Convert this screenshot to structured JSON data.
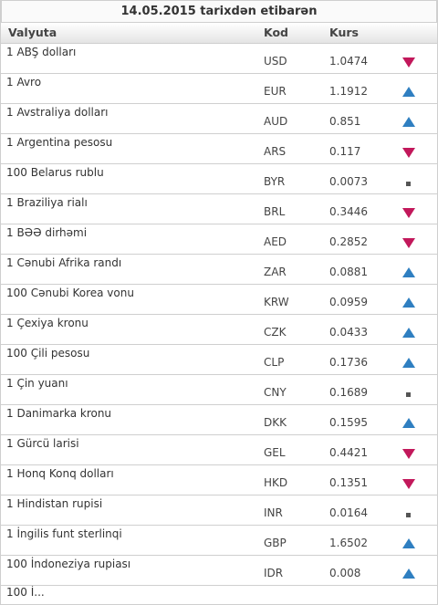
{
  "title": "14.05.2015 tarixdən etibarən",
  "headers": {
    "currency": "Valyuta",
    "code": "Kod",
    "rate": "Kurs"
  },
  "colors": {
    "down": "#c2185b",
    "up": "#2f7fc1",
    "flat": "#555555"
  },
  "rows": [
    {
      "name": "1 ABŞ dolları",
      "code": "USD",
      "rate": "1.0474",
      "trend": "down"
    },
    {
      "name": "1 Avro",
      "code": "EUR",
      "rate": "1.1912",
      "trend": "up"
    },
    {
      "name": "1 Avstraliya dolları",
      "code": "AUD",
      "rate": "0.851",
      "trend": "up"
    },
    {
      "name": "1 Argentina pesosu",
      "code": "ARS",
      "rate": "0.117",
      "trend": "down"
    },
    {
      "name": "100 Belarus rublu",
      "code": "BYR",
      "rate": "0.0073",
      "trend": "flat"
    },
    {
      "name": "1 Braziliya rialı",
      "code": "BRL",
      "rate": "0.3446",
      "trend": "down"
    },
    {
      "name": "1 BƏƏ dirhəmi",
      "code": "AED",
      "rate": "0.2852",
      "trend": "down"
    },
    {
      "name": "1 Cənubi Afrika randı",
      "code": "ZAR",
      "rate": "0.0881",
      "trend": "up"
    },
    {
      "name": "100 Cənubi Korea vonu",
      "code": "KRW",
      "rate": "0.0959",
      "trend": "up"
    },
    {
      "name": "1 Çexiya kronu",
      "code": "CZK",
      "rate": "0.0433",
      "trend": "up"
    },
    {
      "name": "100 Çili pesosu",
      "code": "CLP",
      "rate": "0.1736",
      "trend": "up"
    },
    {
      "name": "1 Çin yuanı",
      "code": "CNY",
      "rate": "0.1689",
      "trend": "flat"
    },
    {
      "name": "1 Danimarka kronu",
      "code": "DKK",
      "rate": "0.1595",
      "trend": "up"
    },
    {
      "name": "1 Gürcü larisi",
      "code": "GEL",
      "rate": "0.4421",
      "trend": "down"
    },
    {
      "name": "1 Honq Konq dolları",
      "code": "HKD",
      "rate": "0.1351",
      "trend": "down"
    },
    {
      "name": "1 Hindistan rupisi",
      "code": "INR",
      "rate": "0.0164",
      "trend": "flat"
    },
    {
      "name": "1 İngilis funt sterlinqi",
      "code": "GBP",
      "rate": "1.6502",
      "trend": "up"
    },
    {
      "name": "100 İndoneziya rupiası",
      "code": "IDR",
      "rate": "0.008",
      "trend": "up"
    }
  ],
  "partial_row": "100 İ..."
}
